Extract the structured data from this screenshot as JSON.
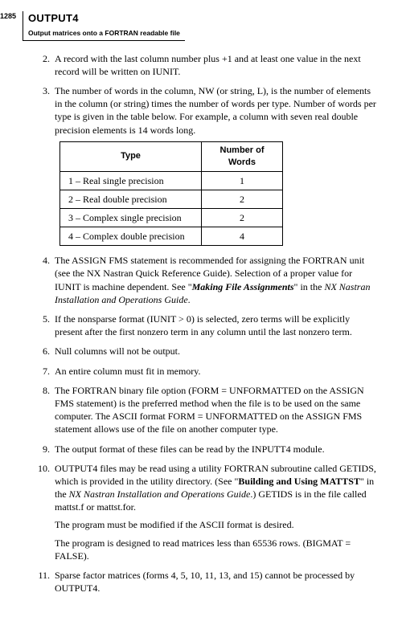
{
  "page_number": "1285",
  "header": {
    "title": "OUTPUT4",
    "subtitle": "Output matrices onto a FORTRAN readable file"
  },
  "items": [
    {
      "n": "2.",
      "paras": [
        [
          {
            "t": "A record with the last column number plus +1 and at least one value in the next record will be written on IUNIT."
          }
        ]
      ]
    },
    {
      "n": "3.",
      "paras": [
        [
          {
            "t": "The number of words in the column, NW (or string, L), is the number of elements in the column (or string) times the number of words per type. Number of words per type is given in the table below. For example, a column with seven real double precision elements is 14 words long."
          }
        ]
      ]
    },
    {
      "n": "4.",
      "paras": [
        [
          {
            "t": "The ASSIGN FMS statement is recommended for assigning the FORTRAN unit (see the NX Nastran Quick Reference Guide). Selection of a proper value for IUNIT is machine dependent. See \""
          },
          {
            "t": "Making File Assignments",
            "cls": "bi"
          },
          {
            "t": "\" in the "
          },
          {
            "t": "NX Nastran Installation and Operations Guide",
            "cls": "i"
          },
          {
            "t": "."
          }
        ]
      ]
    },
    {
      "n": "5.",
      "paras": [
        [
          {
            "t": "If the nonsparse format (IUNIT > 0) is selected, zero terms will be explicitly present after the first nonzero term in any column until the last nonzero term."
          }
        ]
      ]
    },
    {
      "n": "6.",
      "paras": [
        [
          {
            "t": "Null columns will not be output."
          }
        ]
      ]
    },
    {
      "n": "7.",
      "paras": [
        [
          {
            "t": "An entire column must fit in memory."
          }
        ]
      ]
    },
    {
      "n": "8.",
      "paras": [
        [
          {
            "t": "The FORTRAN binary file option (FORM = UNFORMATTED on the ASSIGN FMS statement) is the preferred method when the file is to be used on the same computer. The ASCII format FORM = UNFORMATTED on the ASSIGN FMS statement allows use of the file on another computer type."
          }
        ]
      ]
    },
    {
      "n": "9.",
      "paras": [
        [
          {
            "t": "The output format of these files can be read by the INPUTT4 module."
          }
        ]
      ]
    },
    {
      "n": "10.",
      "paras": [
        [
          {
            "t": "OUTPUT4 files may be read using a utility FORTRAN subroutine called GETIDS, which is provided in the utility directory. (See \""
          },
          {
            "t": "Building and Using MATTST",
            "cls": "b"
          },
          {
            "t": "\" in the "
          },
          {
            "t": "NX Nastran Installation and Operations Guide",
            "cls": "i"
          },
          {
            "t": ".) GETIDS is in the file called mattst.f or mattst.for."
          }
        ],
        [
          {
            "t": "The program must be modified if the ASCII format is desired."
          }
        ],
        [
          {
            "t": "The program is designed to read matrices less than 65536 rows. (BIGMAT = FALSE)."
          }
        ]
      ]
    },
    {
      "n": "11.",
      "paras": [
        [
          {
            "t": "Sparse factor matrices (forms 4, 5, 10, 11, 13, and 15) cannot be processed by OUTPUT4."
          }
        ]
      ]
    }
  ],
  "table": {
    "headers": [
      "Type",
      "Number of Words"
    ],
    "rows": [
      [
        "1 – Real single precision",
        "1"
      ],
      [
        "2 – Real double precision",
        "2"
      ],
      [
        "3 – Complex single precision",
        "2"
      ],
      [
        "4 – Complex double precision",
        "4"
      ]
    ]
  }
}
